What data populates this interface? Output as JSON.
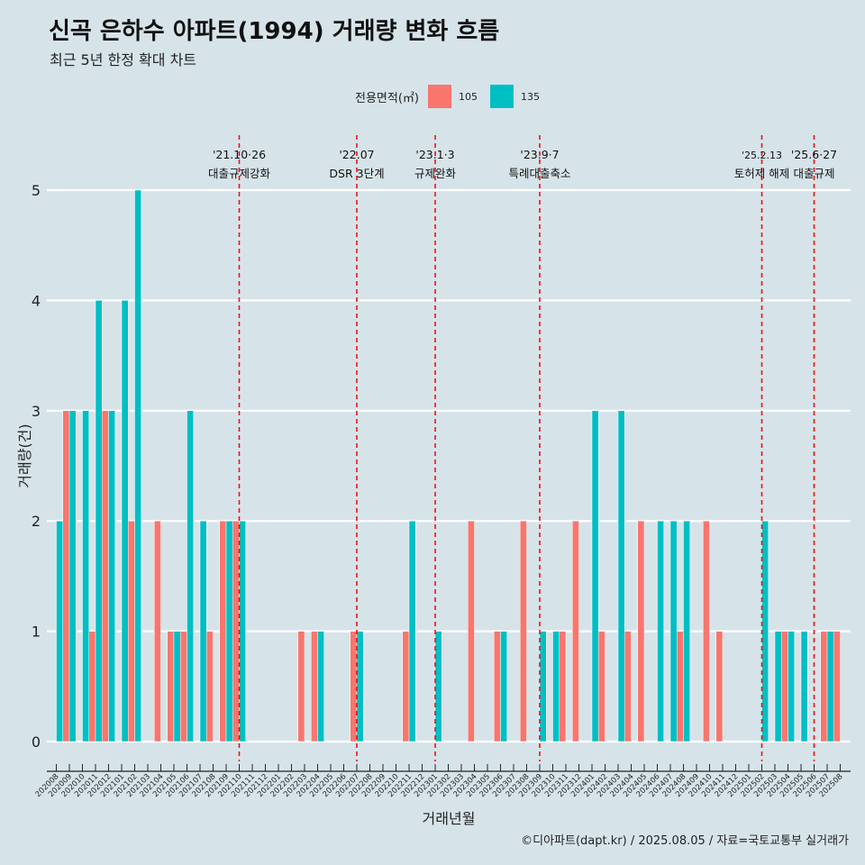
{
  "title": "신곡 은하수 아파트(1994) 거래량 변화 흐름",
  "subtitle": "최근 5년 한정 확대 차트",
  "caption": "©디아파트(dapt.kr) / 2025.08.05 / 자료=국토교통부 실거래가",
  "legend": {
    "title": "전용면적(㎡)",
    "items": [
      {
        "label": "105",
        "color": "#f8766d"
      },
      {
        "label": "135",
        "color": "#00bfc4"
      }
    ]
  },
  "chart_data": {
    "type": "bar",
    "xlabel": "거래년월",
    "ylabel": "거래량(건)",
    "ylim": [
      0,
      5
    ],
    "yticks": [
      0,
      1,
      2,
      3,
      4,
      5
    ],
    "grid": true,
    "legend_position": "top",
    "categories": [
      "202008",
      "202009",
      "202010",
      "202011",
      "202012",
      "202101",
      "202102",
      "202103",
      "202104",
      "202105",
      "202106",
      "202107",
      "202108",
      "202109",
      "202110",
      "202111",
      "202112",
      "202201",
      "202202",
      "202203",
      "202204",
      "202205",
      "202206",
      "202207",
      "202208",
      "202209",
      "202210",
      "202211",
      "202212",
      "202301",
      "202302",
      "202303",
      "202304",
      "202305",
      "202306",
      "202307",
      "202308",
      "202309",
      "202310",
      "202311",
      "202312",
      "202401",
      "202402",
      "202403",
      "202404",
      "202405",
      "202406",
      "202407",
      "202408",
      "202409",
      "202410",
      "202411",
      "202412",
      "202501",
      "202502",
      "202503",
      "202504",
      "202505",
      "202506",
      "202507",
      "202508"
    ],
    "series": [
      {
        "name": "105",
        "color": "#f8766d",
        "values": [
          0,
          3,
          0,
          1,
          3,
          0,
          2,
          0,
          2,
          1,
          1,
          0,
          1,
          2,
          2,
          0,
          0,
          0,
          0,
          1,
          1,
          0,
          0,
          1,
          0,
          0,
          0,
          1,
          0,
          0,
          0,
          0,
          2,
          0,
          1,
          0,
          2,
          0,
          0,
          1,
          2,
          0,
          1,
          0,
          1,
          2,
          0,
          0,
          1,
          0,
          2,
          1,
          0,
          0,
          0,
          0,
          1,
          0,
          0,
          1,
          1
        ]
      },
      {
        "name": "135",
        "color": "#00bfc4",
        "values": [
          2,
          3,
          3,
          4,
          3,
          4,
          5,
          0,
          0,
          1,
          3,
          2,
          0,
          2,
          2,
          0,
          0,
          0,
          0,
          0,
          1,
          0,
          0,
          1,
          0,
          0,
          0,
          2,
          0,
          1,
          0,
          0,
          0,
          0,
          1,
          0,
          0,
          1,
          1,
          0,
          0,
          3,
          0,
          3,
          0,
          0,
          2,
          2,
          2,
          0,
          0,
          0,
          0,
          0,
          2,
          1,
          1,
          1,
          0,
          1,
          0
        ]
      }
    ],
    "events": [
      {
        "category": "202110",
        "date": "'21.10·26",
        "label": "대출규제강화"
      },
      {
        "category": "202207",
        "date": "'22.07",
        "label": "DSR 3단계"
      },
      {
        "category": "202301",
        "date": "'23.1·3",
        "label": "규제완화"
      },
      {
        "category": "202309",
        "date": "'23.9·7",
        "label": "특례대출축소"
      },
      {
        "category": "202502",
        "date": "'25.2.13",
        "label": "토허제 해제"
      },
      {
        "category": "202506",
        "date": "'25.6·27",
        "label": "대출규제"
      }
    ]
  }
}
